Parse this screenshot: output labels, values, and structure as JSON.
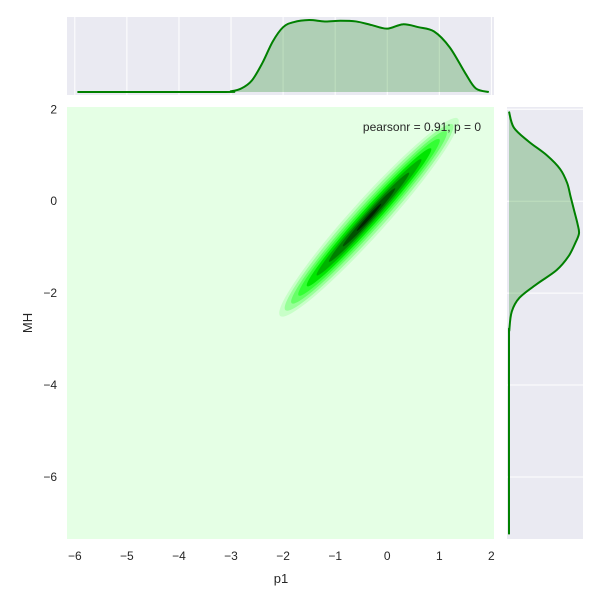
{
  "chart_data": {
    "type": "kde-jointplot",
    "xlabel": "p1",
    "ylabel": "MH",
    "annotation": "pearsonr = 0.91; p = 0",
    "x_ticks": [
      -6,
      -5,
      -4,
      -3,
      -2,
      -1,
      0,
      1,
      2
    ],
    "y_ticks": [
      2,
      0,
      -2,
      -4,
      -6
    ],
    "xlim": [
      -6.15,
      2.05
    ],
    "ylim": [
      -7.35,
      2.05
    ],
    "joint_density": {
      "center": [
        -0.35,
        -0.35
      ],
      "orientation_deg": 48,
      "levels": [
        {
          "level": 1,
          "semi_major": 2.55,
          "semi_minor": 0.34
        },
        {
          "level": 2,
          "semi_major": 2.4,
          "semi_minor": 0.29
        },
        {
          "level": 3,
          "semi_major": 2.22,
          "semi_minor": 0.24
        },
        {
          "level": 4,
          "semi_major": 2.02,
          "semi_minor": 0.2
        },
        {
          "level": 5,
          "semi_major": 1.78,
          "semi_minor": 0.16
        },
        {
          "level": 6,
          "semi_major": 1.5,
          "semi_minor": 0.12
        },
        {
          "level": 7,
          "semi_major": 1.15,
          "semi_minor": 0.09
        },
        {
          "level": 8,
          "semi_major": 0.75,
          "semi_minor": 0.06
        },
        {
          "level": 9,
          "semi_major": 0.35,
          "semi_minor": 0.03
        }
      ]
    },
    "marginal_x": {
      "x": [
        -5.95,
        -3.2,
        -3.0,
        -2.8,
        -2.6,
        -2.4,
        -2.2,
        -2.0,
        -1.8,
        -1.5,
        -1.2,
        -0.9,
        -0.6,
        -0.3,
        0.0,
        0.3,
        0.6,
        0.9,
        1.2,
        1.5,
        1.7,
        1.95
      ],
      "density": [
        0.0,
        0.0,
        0.01,
        0.05,
        0.16,
        0.4,
        0.7,
        0.9,
        0.97,
        1.0,
        0.98,
        0.99,
        0.98,
        0.93,
        0.88,
        0.94,
        0.9,
        0.84,
        0.62,
        0.26,
        0.05,
        0.0
      ]
    },
    "marginal_y": {
      "y": [
        1.95,
        1.6,
        1.3,
        1.0,
        0.7,
        0.4,
        0.1,
        -0.2,
        -0.5,
        -0.7,
        -0.9,
        -1.2,
        -1.5,
        -1.8,
        -2.1,
        -2.4,
        -2.8,
        -3.2,
        -7.25
      ],
      "density": [
        0.0,
        0.07,
        0.28,
        0.54,
        0.73,
        0.83,
        0.88,
        0.93,
        0.98,
        1.0,
        0.95,
        0.85,
        0.68,
        0.4,
        0.15,
        0.04,
        0.005,
        0.0,
        0.0
      ]
    },
    "colors": {
      "accent": "#008000",
      "joint_background": "#e5ffe5",
      "marginal_fill": "#008000",
      "marginal_background": "#eaeaf2",
      "grid": "#ffffff",
      "contour_levels": [
        "#e5ffe5",
        "#c8ffc8",
        "#99ff99",
        "#66ff66",
        "#33ff33",
        "#00e600",
        "#00b300",
        "#008000",
        "#005200",
        "#002600"
      ]
    }
  }
}
